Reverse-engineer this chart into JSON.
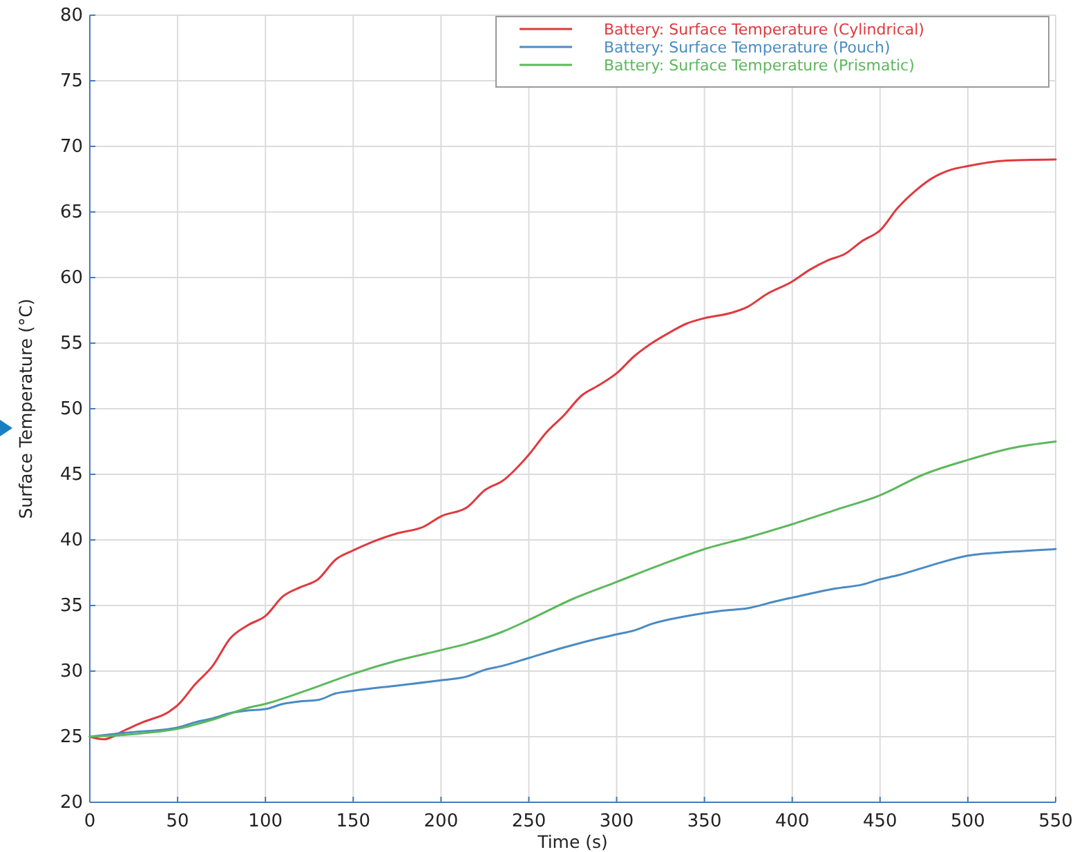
{
  "chart_data": {
    "type": "line",
    "xlabel": "Time (s)",
    "ylabel": "Surface Temperature (°C)",
    "xlim": [
      0,
      550
    ],
    "xticks": [
      0,
      50,
      100,
      150,
      200,
      250,
      300,
      350,
      400,
      450,
      500,
      550
    ],
    "ylim": [
      20,
      80
    ],
    "yticks": [
      20,
      25,
      30,
      35,
      40,
      45,
      50,
      55,
      60,
      65,
      70,
      75,
      80
    ],
    "grid": true,
    "legend": "top right",
    "marker": "none",
    "line_style": "solid",
    "series": [
      {
        "name": "Battery: Surface Temperature (Cylindrical)",
        "color": "#e0393e",
        "x": [
          0,
          8,
          20,
          30,
          45,
          50,
          60,
          70,
          80,
          90,
          100,
          110,
          120,
          130,
          140,
          150,
          160,
          175,
          190,
          200,
          215,
          225,
          235,
          250,
          260,
          270,
          280,
          290,
          300,
          310,
          320,
          330,
          340,
          350,
          365,
          375,
          385,
          400,
          410,
          420,
          430,
          440,
          450,
          460,
          470,
          480,
          490,
          500,
          520,
          550
        ],
        "values": [
          25,
          24.8,
          25.5,
          26.1,
          26.9,
          27.4,
          29,
          30.4,
          32.5,
          33.5,
          34.2,
          35.7,
          36.4,
          37,
          38.5,
          39.2,
          39.8,
          40.5,
          41,
          41.8,
          42.5,
          43.8,
          44.5,
          46.5,
          48.2,
          49.5,
          51,
          51.8,
          52.7,
          54,
          55,
          55.8,
          56.5,
          56.9,
          57.3,
          57.8,
          58.7,
          59.7,
          60.6,
          61.3,
          61.8,
          62.8,
          63.6,
          65.3,
          66.6,
          67.6,
          68.2,
          68.5,
          68.9,
          69
        ]
      },
      {
        "name": "Battery: Surface Temperature (Pouch)",
        "color": "#4a8bc4",
        "x": [
          0,
          20,
          50,
          60,
          70,
          80,
          90,
          100,
          110,
          120,
          130,
          140,
          150,
          175,
          200,
          215,
          225,
          235,
          250,
          270,
          290,
          300,
          310,
          320,
          340,
          360,
          375,
          390,
          400,
          425,
          440,
          450,
          460,
          480,
          500,
          525,
          550
        ],
        "values": [
          25,
          25.3,
          25.7,
          26.1,
          26.4,
          26.8,
          27,
          27.1,
          27.5,
          27.7,
          27.8,
          28.3,
          28.5,
          28.9,
          29.3,
          29.6,
          30.1,
          30.4,
          31,
          31.8,
          32.5,
          32.8,
          33.1,
          33.6,
          34.2,
          34.6,
          34.8,
          35.3,
          35.6,
          36.3,
          36.6,
          37,
          37.3,
          38.1,
          38.8,
          39.1,
          39.3
        ]
      },
      {
        "name": "Battery: Surface Temperature (Prismatic)",
        "color": "#5cb85c",
        "x": [
          0,
          25,
          50,
          70,
          90,
          100,
          125,
          150,
          175,
          200,
          215,
          235,
          250,
          275,
          300,
          325,
          350,
          375,
          400,
          425,
          450,
          475,
          500,
          525,
          550
        ],
        "values": [
          25,
          25.2,
          25.6,
          26.3,
          27.2,
          27.5,
          28.6,
          29.8,
          30.8,
          31.6,
          32.1,
          33,
          33.9,
          35.5,
          36.8,
          38.1,
          39.3,
          40.2,
          41.2,
          42.3,
          43.4,
          45,
          46.1,
          47,
          47.5
        ]
      }
    ]
  }
}
